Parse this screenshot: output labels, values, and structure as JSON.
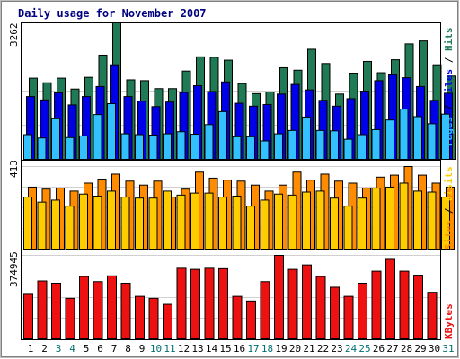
{
  "title": "Daily usage for November 2007",
  "colors": {
    "background": "#ffffff",
    "border": "#000000",
    "title": "#000080",
    "hits": "#1f7a55",
    "files": "#0000e8",
    "pages": "#33c0ff",
    "visits": "#ffcc00",
    "sites": "#ff8c00",
    "kbytes": "#ee1111",
    "day_weekday": "#000000",
    "day_weekend": "#007070"
  },
  "chart_data": [
    {
      "type": "bar",
      "panel": "hits-files-pages",
      "max_label": "3262",
      "ylim": [
        0,
        3262
      ],
      "grid": true,
      "legend": [
        {
          "name": "Pages",
          "sep": " / "
        },
        {
          "name": "Files",
          "sep": " / "
        },
        {
          "name": "Hits",
          "sep": ""
        }
      ],
      "categories": [
        "1",
        "2",
        "3",
        "4",
        "5",
        "6",
        "7",
        "8",
        "9",
        "10",
        "11",
        "12",
        "13",
        "14",
        "15",
        "16",
        "17",
        "18",
        "19",
        "20",
        "21",
        "22",
        "23",
        "24",
        "25",
        "26",
        "27",
        "28",
        "29",
        "30",
        "31"
      ],
      "series": [
        {
          "name": "Hits",
          "values": [
            1940,
            1830,
            1940,
            1680,
            1960,
            2490,
            3262,
            1900,
            1880,
            1690,
            1690,
            2110,
            2450,
            2440,
            2370,
            1810,
            1570,
            1610,
            2190,
            2130,
            2630,
            2290,
            1560,
            2060,
            2340,
            2070,
            2380,
            2760,
            2830,
            2260,
            1990
          ]
        },
        {
          "name": "Files",
          "values": [
            1500,
            1420,
            1590,
            1300,
            1500,
            1740,
            2260,
            1500,
            1390,
            1260,
            1370,
            1600,
            1760,
            1620,
            1850,
            1340,
            1270,
            1310,
            1560,
            1790,
            1660,
            1410,
            1270,
            1450,
            1630,
            1880,
            2020,
            1950,
            1740,
            1410,
            1580
          ]
        },
        {
          "name": "Pages",
          "values": [
            590,
            510,
            970,
            520,
            560,
            1070,
            1330,
            610,
            590,
            580,
            610,
            660,
            600,
            830,
            1140,
            540,
            540,
            440,
            610,
            690,
            1010,
            690,
            680,
            480,
            590,
            710,
            940,
            1200,
            1020,
            850,
            1080
          ]
        }
      ]
    },
    {
      "type": "bar",
      "panel": "visits-sites",
      "max_label": "413",
      "ylim": [
        0,
        413
      ],
      "grid": true,
      "legend": [
        {
          "name": "Sites",
          "sep": " / "
        },
        {
          "name": "Visits",
          "sep": ""
        }
      ],
      "categories": [
        "1",
        "2",
        "3",
        "4",
        "5",
        "6",
        "7",
        "8",
        "9",
        "10",
        "11",
        "12",
        "13",
        "14",
        "15",
        "16",
        "17",
        "18",
        "19",
        "20",
        "21",
        "22",
        "23",
        "24",
        "25",
        "26",
        "27",
        "28",
        "29",
        "30",
        "31"
      ],
      "series": [
        {
          "name": "Visits",
          "values": [
            260,
            235,
            245,
            215,
            275,
            265,
            290,
            260,
            255,
            255,
            290,
            270,
            280,
            280,
            260,
            265,
            215,
            245,
            275,
            270,
            285,
            290,
            255,
            215,
            255,
            305,
            310,
            330,
            290,
            285,
            260
          ]
        },
        {
          "name": "Sites",
          "values": [
            310,
            300,
            305,
            290,
            330,
            350,
            375,
            340,
            320,
            340,
            260,
            300,
            385,
            355,
            345,
            340,
            320,
            290,
            320,
            385,
            345,
            375,
            340,
            330,
            305,
            360,
            370,
            413,
            370,
            330,
            310
          ]
        }
      ]
    },
    {
      "type": "bar",
      "panel": "kbytes",
      "max_label": "374945",
      "ylim": [
        0,
        374945
      ],
      "grid": true,
      "legend": [
        {
          "name": "KBytes",
          "sep": ""
        }
      ],
      "categories": [
        "1",
        "2",
        "3",
        "4",
        "5",
        "6",
        "7",
        "8",
        "9",
        "10",
        "11",
        "12",
        "13",
        "14",
        "15",
        "16",
        "17",
        "18",
        "19",
        "20",
        "21",
        "22",
        "23",
        "24",
        "25",
        "26",
        "27",
        "28",
        "29",
        "30",
        "31"
      ],
      "series": [
        {
          "name": "KBytes",
          "values": [
            200000,
            260000,
            250000,
            182000,
            280000,
            257000,
            283000,
            250000,
            191000,
            182000,
            155000,
            317000,
            312000,
            317000,
            315000,
            191000,
            170000,
            257000,
            374945,
            312000,
            332000,
            280000,
            232000,
            191000,
            250000,
            304000,
            357000,
            304000,
            286000,
            209000,
            0
          ]
        }
      ],
      "weekend_days": [
        "3",
        "4",
        "10",
        "11",
        "17",
        "18",
        "24",
        "25",
        "31"
      ]
    }
  ]
}
